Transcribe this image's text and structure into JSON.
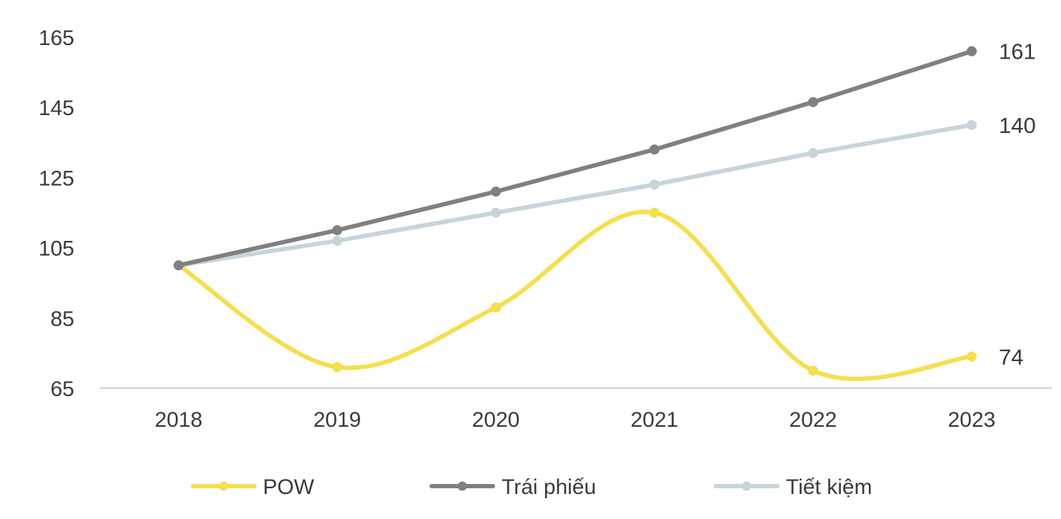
{
  "chart_data": {
    "type": "line",
    "title": "",
    "xlabel": "",
    "ylabel": "",
    "categories": [
      "2018",
      "2019",
      "2020",
      "2021",
      "2022",
      "2023"
    ],
    "ylim": [
      65,
      165
    ],
    "yticks": [
      65,
      85,
      105,
      125,
      145,
      165
    ],
    "grid": false,
    "legend_position": "bottom",
    "smooth_series": [
      "POW"
    ],
    "series": [
      {
        "name": "POW",
        "color": "#F5DF4D",
        "values": [
          100,
          71,
          88,
          115,
          70,
          74
        ],
        "end_label": "74"
      },
      {
        "name": "Trái phiếu",
        "color": "#808080",
        "values": [
          100,
          110,
          121,
          133,
          146.5,
          161
        ],
        "end_label": "161"
      },
      {
        "name": "Tiết kiệm",
        "color": "#C7D4D9",
        "values": [
          100,
          107,
          115,
          123,
          132,
          140
        ],
        "end_label": "140"
      }
    ]
  }
}
